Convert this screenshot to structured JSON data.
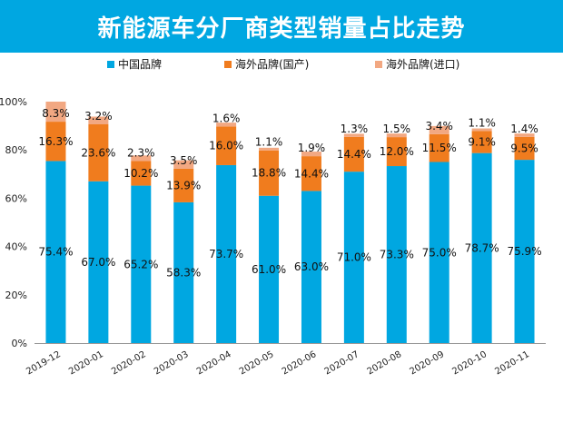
{
  "title": "新能源车分厂商类型销量占比走势",
  "colors": {
    "header": "#00a7e1",
    "domestic": "#00a7e1",
    "overseas_local": "#f07c1e",
    "overseas_import": "#f2a882"
  },
  "chart_data": {
    "type": "bar",
    "stacked": true,
    "title": "新能源车分厂商类型销量占比走势",
    "categories": [
      "2019-12",
      "2020-01",
      "2020-02",
      "2020-03",
      "2020-04",
      "2020-05",
      "2020-06",
      "2020-07",
      "2020-08",
      "2020-09",
      "2020-10",
      "2020-11"
    ],
    "series": [
      {
        "name": "中国品牌",
        "color": "#00a7e1",
        "values": [
          75.4,
          67.0,
          65.2,
          58.3,
          73.7,
          61.0,
          63.0,
          71.0,
          73.3,
          75.0,
          78.7,
          75.9
        ],
        "labels": [
          "75.4%",
          "67.0%",
          "65.2%",
          "58.3%",
          "73.7%",
          "61.0%",
          "63.0%",
          "71.0%",
          "73.3%",
          "75.0%",
          "78.7%",
          "75.9%"
        ]
      },
      {
        "name": "海外品牌(国产)",
        "color": "#f07c1e",
        "values": [
          16.3,
          23.6,
          10.2,
          13.9,
          16.0,
          18.8,
          14.4,
          14.4,
          12.0,
          11.5,
          9.1,
          9.5
        ],
        "labels": [
          "16.3%",
          "23.6%",
          "10.2%",
          "13.9%",
          "16.0%",
          "18.8%",
          "14.4%",
          "14.4%",
          "12.0%",
          "11.5%",
          "9.1%",
          "9.5%"
        ]
      },
      {
        "name": "海外品牌(进口)",
        "color": "#f2a882",
        "values": [
          8.3,
          3.2,
          2.3,
          3.5,
          1.6,
          1.1,
          1.9,
          1.3,
          1.5,
          3.4,
          1.1,
          1.4
        ],
        "labels": [
          "8.3%",
          "3.2%",
          "2.3%",
          "3.5%",
          "1.6%",
          "1.1%",
          "1.9%",
          "1.3%",
          "1.5%",
          "3.4%",
          "1.1%",
          "1.4%"
        ]
      }
    ],
    "ylim": [
      0,
      100
    ],
    "yticks": [
      0,
      20,
      40,
      60,
      80,
      100
    ],
    "ytick_labels": [
      "0%",
      "20%",
      "40%",
      "60%",
      "80%",
      "100%"
    ],
    "xlabel": "",
    "ylabel": "",
    "legend": "top-center",
    "grid": false
  }
}
